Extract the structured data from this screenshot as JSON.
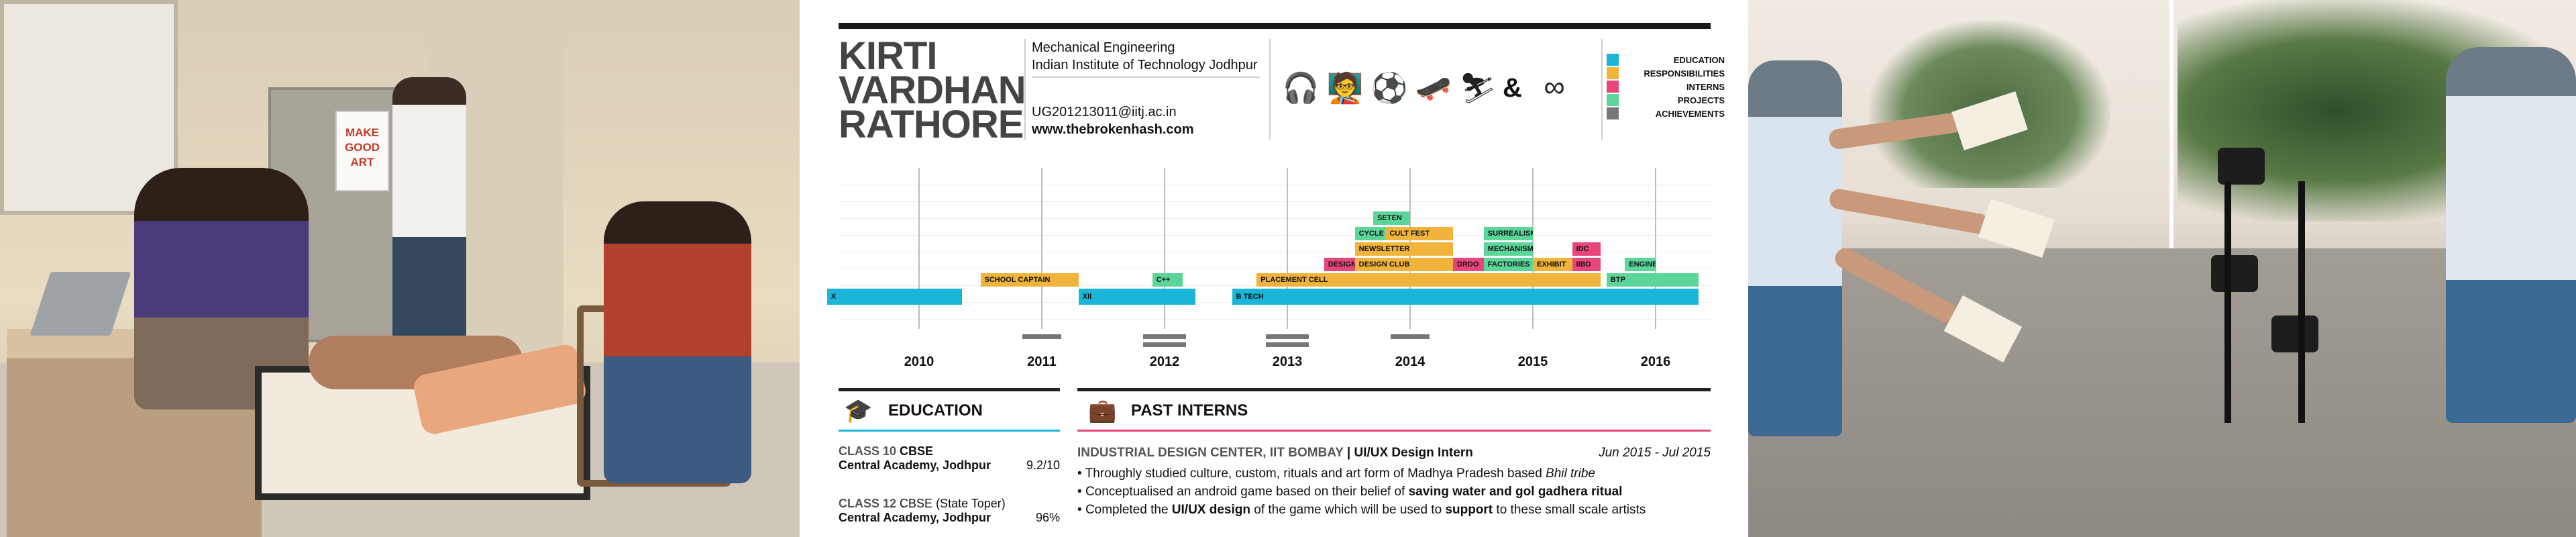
{
  "resume": {
    "name_lines": [
      "KIRTI",
      "VARDHAN",
      "RATHORE"
    ],
    "department": "Mechanical Engineering",
    "institute": "Indian Institute of Technology Jodhpur",
    "email": "UG201213011@iitj.ac.in",
    "website": "www.thebrokenhash.com",
    "ampersand": "&",
    "icons": [
      "headphones-icon",
      "presenter-icon",
      "football-player-icon",
      "skater-icon",
      "skier-icon",
      "infinity-link-icon"
    ],
    "legend": [
      {
        "label": "EDUCATION",
        "color": "#19b6d8"
      },
      {
        "label": "RESPONSIBILITIES",
        "color": "#f0b43c"
      },
      {
        "label": "INTERNS",
        "color": "#e8457a"
      },
      {
        "label": "PROJECTS",
        "color": "#5cd59a"
      },
      {
        "label": "ACHIEVEMENTS",
        "color": "#777777"
      }
    ],
    "timeline": {
      "years": [
        "2010",
        "2011",
        "2012",
        "2013",
        "2014",
        "2015",
        "2016"
      ],
      "bars": [
        {
          "label": "X",
          "color": "#19b6d8",
          "start": 2009.25,
          "end": 2010.35,
          "row": 0
        },
        {
          "label": "SCHOOL CAPTAIN",
          "color": "#f0b43c",
          "start": 2010.5,
          "end": 2011.3,
          "row": 1
        },
        {
          "label": "XII",
          "color": "#19b6d8",
          "start": 2011.3,
          "end": 2012.25,
          "row": 0
        },
        {
          "label": "C++",
          "color": "#5cd59a",
          "start": 2011.9,
          "end": 2012.15,
          "row": 1
        },
        {
          "label": "B TECH",
          "color": "#19b6d8",
          "start": 2012.55,
          "end": 2016.35,
          "row": 0
        },
        {
          "label": "PLACEMENT CELL",
          "color": "#f0b43c",
          "start": 2012.75,
          "end": 2015.55,
          "row": 1
        },
        {
          "label": "BTP",
          "color": "#5cd59a",
          "start": 2015.6,
          "end": 2016.35,
          "row": 1
        },
        {
          "label": "DESIGN",
          "color": "#e8457a",
          "start": 2013.3,
          "end": 2013.55,
          "row": 2
        },
        {
          "label": "DESIGN CLUB",
          "color": "#f0b43c",
          "start": 2013.55,
          "end": 2014.35,
          "row": 2
        },
        {
          "label": "DRDO",
          "color": "#e8457a",
          "start": 2014.35,
          "end": 2014.6,
          "row": 2
        },
        {
          "label": "FACTORIES",
          "color": "#5cd59a",
          "start": 2014.6,
          "end": 2015.0,
          "row": 2
        },
        {
          "label": "EXHIBIT",
          "color": "#f0b43c",
          "start": 2015.0,
          "end": 2015.32,
          "row": 2
        },
        {
          "label": "IIBD",
          "color": "#e8457a",
          "start": 2015.32,
          "end": 2015.55,
          "row": 2
        },
        {
          "label": "ENGINE",
          "color": "#5cd59a",
          "start": 2015.75,
          "end": 2016.0,
          "row": 2
        },
        {
          "label": "NEWSLETTER",
          "color": "#f0b43c",
          "start": 2013.55,
          "end": 2014.35,
          "row": 3
        },
        {
          "label": "MECHANISM",
          "color": "#5cd59a",
          "start": 2014.6,
          "end": 2015.0,
          "row": 3
        },
        {
          "label": "IDC",
          "color": "#e8457a",
          "start": 2015.32,
          "end": 2015.55,
          "row": 3
        },
        {
          "label": "CYCLE",
          "color": "#5cd59a",
          "start": 2013.55,
          "end": 2013.8,
          "row": 4
        },
        {
          "label": "CULT FEST",
          "color": "#f0b43c",
          "start": 2013.8,
          "end": 2014.35,
          "row": 4
        },
        {
          "label": "SURREALISM",
          "color": "#5cd59a",
          "start": 2014.6,
          "end": 2015.0,
          "row": 4
        },
        {
          "label": "SETEN",
          "color": "#5cd59a",
          "start": 2013.7,
          "end": 2014.0,
          "row": 5
        }
      ],
      "achievement_marks": [
        {
          "x": 2011.0,
          "count": 1
        },
        {
          "x": 2012.0,
          "count": 2
        },
        {
          "x": 2013.0,
          "count": 2
        },
        {
          "x": 2014.0,
          "count": 1
        }
      ]
    },
    "education": {
      "title": "EDUCATION",
      "entries": [
        {
          "class_label": "CLASS 10",
          "board": "CBSE",
          "school": "Central Academy, Jodhpur",
          "score": "9.2/10"
        },
        {
          "class_label": "CLASS 12",
          "board": "CBSE (State Toper)",
          "school": "Central Academy, Jodhpur",
          "score": "96%"
        }
      ]
    },
    "interns": {
      "title": "PAST INTERNS",
      "org": "INDUSTRIAL DESIGN CENTER, IIT BOMBAY",
      "separator": " | ",
      "role": "UI/UX Design Intern",
      "dates": "Jun 2015 - Jul 2015",
      "bullets": [
        {
          "parts": [
            {
              "text": "Throughly studied culture, custom, rituals and art form of Madhya Pradesh based ",
              "style": ""
            },
            {
              "text": "Bhil tribe",
              "style": "italic"
            }
          ]
        },
        {
          "parts": [
            {
              "text": "Conceptualised an android game based on their belief of ",
              "style": ""
            },
            {
              "text": "saving water and gol gadhera ritual",
              "style": "bold"
            }
          ]
        },
        {
          "parts": [
            {
              "text": "Completed the ",
              "style": ""
            },
            {
              "text": "UI/UX design",
              "style": "bold"
            },
            {
              "text": " of the game which will be used to ",
              "style": ""
            },
            {
              "text": "support",
              "style": "bold"
            },
            {
              "text": " to these small scale artists",
              "style": ""
            }
          ]
        }
      ]
    }
  },
  "photos": {
    "left_poster_text": [
      "MAKE",
      "GOOD",
      "ART"
    ]
  }
}
